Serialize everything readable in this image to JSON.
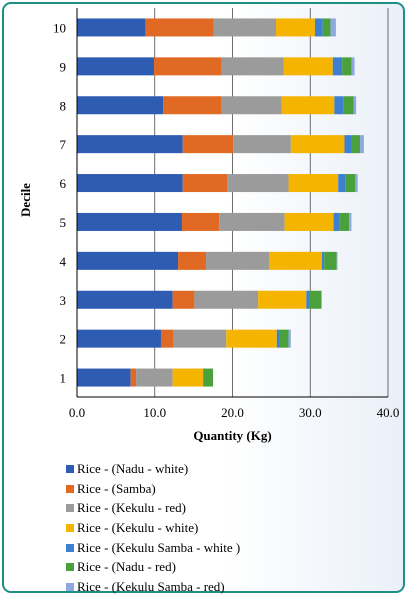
{
  "chart_data": {
    "type": "bar",
    "orientation": "horizontal",
    "stacked": true,
    "xlabel": "Quantity (Kg)",
    "ylabel": "Decile",
    "xlim": [
      0,
      40
    ],
    "xticks": [
      "0.0",
      "10.0",
      "20.0",
      "30.0",
      "40.0"
    ],
    "categories": [
      "1",
      "2",
      "3",
      "4",
      "5",
      "6",
      "7",
      "8",
      "9",
      "10"
    ],
    "series": [
      {
        "name": "Rice - (Nadu - white)",
        "color": "#2f5cb3",
        "values": [
          6.9,
          10.8,
          12.3,
          13.0,
          13.5,
          13.6,
          13.6,
          11.1,
          9.9,
          8.8
        ]
      },
      {
        "name": "Rice - (Samba)",
        "color": "#e06a24",
        "values": [
          0.7,
          1.6,
          2.8,
          3.6,
          4.8,
          5.7,
          6.5,
          7.5,
          8.7,
          8.8
        ]
      },
      {
        "name": "Rice - (Kekulu - red)",
        "color": "#9b9b9b",
        "values": [
          4.7,
          6.8,
          8.2,
          8.1,
          8.4,
          7.9,
          7.4,
          7.7,
          8.0,
          8.0
        ]
      },
      {
        "name": "Rice - (Kekulu - white)",
        "color": "#f5b400",
        "values": [
          3.9,
          6.5,
          6.2,
          6.8,
          6.3,
          6.4,
          6.9,
          6.8,
          6.3,
          5.0
        ]
      },
      {
        "name": "Rice - (Kekulu Samba - white )",
        "color": "#3d7fd0",
        "values": [
          0.1,
          0.4,
          0.4,
          0.3,
          0.8,
          0.9,
          0.9,
          1.2,
          1.2,
          1.0
        ]
      },
      {
        "name": "Rice - (Nadu - red)",
        "color": "#4aa03a",
        "values": [
          1.2,
          1.1,
          1.5,
          1.6,
          1.2,
          1.3,
          1.1,
          1.3,
          1.2,
          1.0
        ]
      },
      {
        "name": "Rice - (Kekulu Samba - red)",
        "color": "#8fa9e0",
        "values": [
          0.0,
          0.3,
          0.1,
          0.1,
          0.3,
          0.3,
          0.5,
          0.3,
          0.4,
          0.7
        ]
      }
    ]
  }
}
